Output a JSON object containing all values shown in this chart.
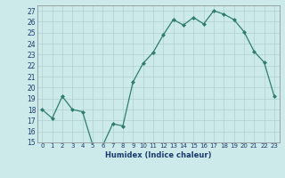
{
  "x": [
    0,
    1,
    2,
    3,
    4,
    5,
    6,
    7,
    8,
    9,
    10,
    11,
    12,
    13,
    14,
    15,
    16,
    17,
    18,
    19,
    20,
    21,
    22,
    23
  ],
  "y": [
    18.0,
    17.2,
    19.2,
    18.0,
    17.8,
    14.8,
    14.7,
    16.7,
    16.5,
    20.5,
    22.2,
    23.2,
    24.8,
    26.2,
    25.7,
    26.4,
    25.8,
    27.0,
    26.7,
    26.2,
    25.1,
    23.3,
    22.3,
    19.2
  ],
  "xlabel": "Humidex (Indice chaleur)",
  "ylim": [
    15,
    27.5
  ],
  "xlim": [
    -0.5,
    23.5
  ],
  "yticks": [
    15,
    16,
    17,
    18,
    19,
    20,
    21,
    22,
    23,
    24,
    25,
    26,
    27
  ],
  "xticks": [
    0,
    1,
    2,
    3,
    4,
    5,
    6,
    7,
    8,
    9,
    10,
    11,
    12,
    13,
    14,
    15,
    16,
    17,
    18,
    19,
    20,
    21,
    22,
    23
  ],
  "line_color": "#2e7d6e",
  "bg_color": "#cdeaea",
  "grid_color": "#b0d0d0",
  "xlabel_color": "#1a3a6e",
  "tick_color": "#1a3a6e"
}
